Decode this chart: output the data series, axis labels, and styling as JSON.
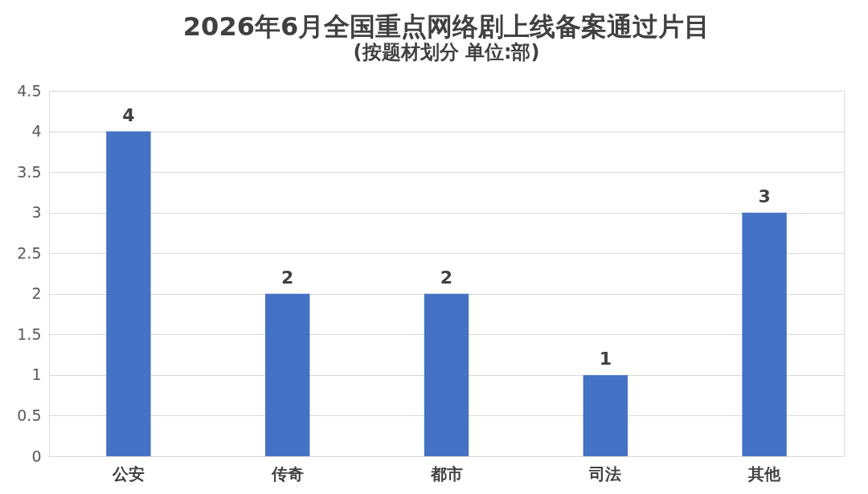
{
  "chart_data": {
    "type": "bar",
    "title": "2026年6月全国重点网络剧上线备案通过片目",
    "subtitle": "(按题材划分 单位:部)",
    "categories": [
      "公安",
      "传奇",
      "都市",
      "司法",
      "其他"
    ],
    "values": [
      4,
      2,
      2,
      1,
      3
    ],
    "color": "#4472c4",
    "ylim": [
      0,
      4.5
    ],
    "yticks": [
      0,
      0.5,
      1,
      1.5,
      2,
      2.5,
      3,
      3.5,
      4,
      4.5
    ],
    "grid": "y",
    "data_labels": true
  }
}
